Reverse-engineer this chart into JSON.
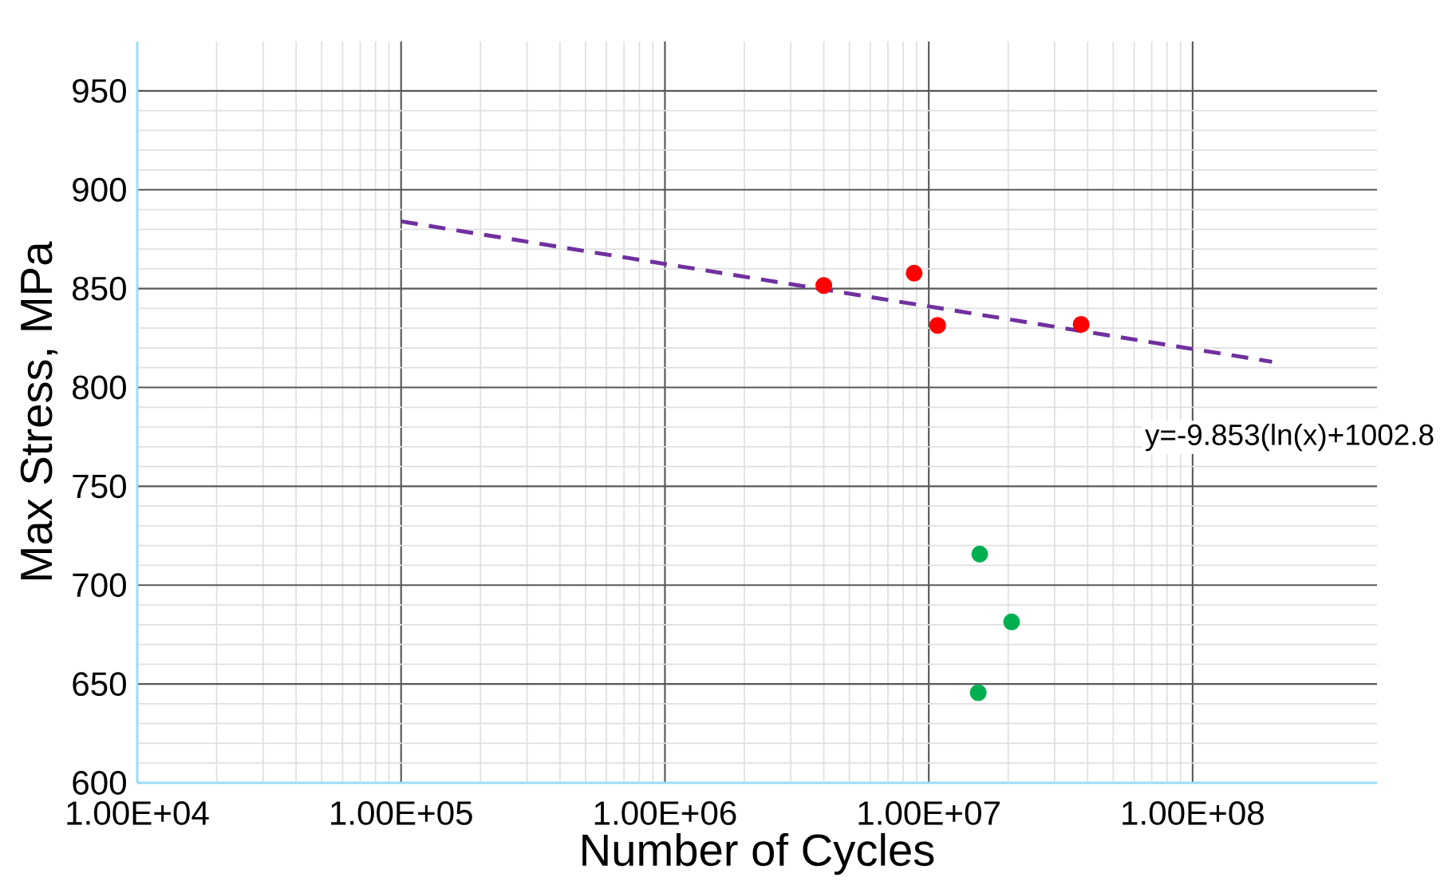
{
  "chart_data": {
    "type": "scatter",
    "xlabel": "Number of Cycles",
    "ylabel": "Max Stress, MPa",
    "log": "x",
    "grid": true,
    "xlim": [
      10000,
      500000000
    ],
    "ylim": [
      600,
      975
    ],
    "xticks": [
      {
        "value": 10000,
        "label": "1.00E+04"
      },
      {
        "value": 100000,
        "label": "1.00E+05"
      },
      {
        "value": 1000000,
        "label": "1.00E+06"
      },
      {
        "value": 10000000,
        "label": "1.00E+07"
      },
      {
        "value": 100000000,
        "label": "1.00E+08"
      }
    ],
    "yticks": [
      600,
      650,
      700,
      750,
      800,
      850,
      900,
      950
    ],
    "series": [
      {
        "color": "#ff0000",
        "marker": "circle",
        "x": [
          4000000,
          8800000,
          10800000,
          37800000
        ],
        "values": [
          851.6,
          857.8,
          831.4,
          831.9
        ]
      },
      {
        "color": "#00b050",
        "marker": "circle",
        "x": [
          15600000,
          20600000,
          15400000
        ],
        "values": [
          715.7,
          681.4,
          645.6
        ]
      },
      {
        "type": "line",
        "color": "#7030a0",
        "line_style": "dashed",
        "marker": "none",
        "x": [
          100000,
          200000000
        ],
        "values": [
          884,
          813
        ]
      }
    ],
    "annotations": [
      "y=-9.853(ln(x)+1002.8"
    ]
  }
}
